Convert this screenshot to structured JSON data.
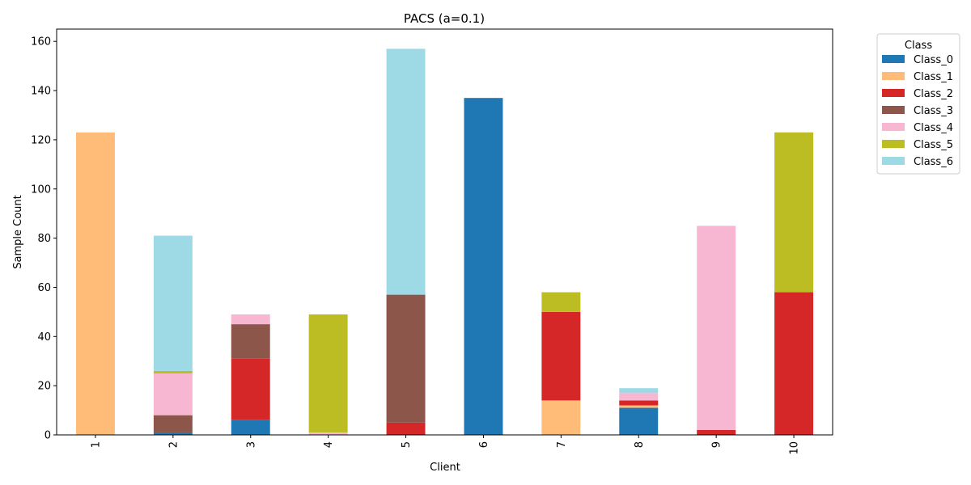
{
  "chart_data": {
    "type": "bar",
    "stacked": true,
    "title": "PACS (a=0.1)",
    "xlabel": "Client",
    "ylabel": "Sample Count",
    "categories": [
      "1",
      "2",
      "3",
      "4",
      "5",
      "6",
      "7",
      "8",
      "9",
      "10"
    ],
    "ylim": [
      0,
      165
    ],
    "yticks": [
      0,
      20,
      40,
      60,
      80,
      100,
      120,
      140,
      160
    ],
    "legend": {
      "title": "Class",
      "placement": "outside-right-top"
    },
    "series": [
      {
        "name": "Class_0",
        "color": "#1f77b4",
        "values": [
          0,
          1,
          6,
          0,
          0,
          137,
          0,
          11,
          0,
          0
        ]
      },
      {
        "name": "Class_1",
        "color": "#ffbb78",
        "values": [
          123,
          0,
          0,
          0,
          0,
          0,
          14,
          1,
          0,
          0
        ]
      },
      {
        "name": "Class_2",
        "color": "#d62728",
        "values": [
          0,
          0,
          25,
          0,
          5,
          0,
          36,
          2,
          2,
          58
        ]
      },
      {
        "name": "Class_3",
        "color": "#8c564b",
        "values": [
          0,
          7,
          14,
          0,
          52,
          0,
          0,
          0,
          0,
          0
        ]
      },
      {
        "name": "Class_4",
        "color": "#f7b6d2",
        "values": [
          0,
          17,
          4,
          1,
          0,
          0,
          0,
          3,
          83,
          0
        ]
      },
      {
        "name": "Class_5",
        "color": "#bcbd22",
        "values": [
          0,
          1,
          0,
          48,
          0,
          0,
          8,
          0,
          0,
          65
        ]
      },
      {
        "name": "Class_6",
        "color": "#9edae5",
        "values": [
          0,
          55,
          0,
          0,
          100,
          0,
          0,
          2,
          0,
          0
        ]
      }
    ]
  }
}
